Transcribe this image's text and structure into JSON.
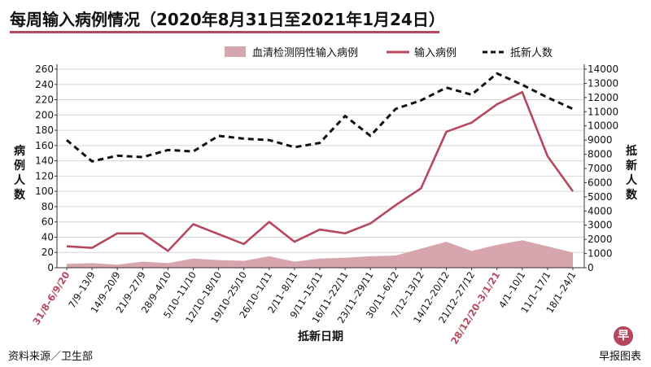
{
  "title": "每周输入病例情况（2020年8月31日至2021年1月24日）",
  "source": "资料来源／卫生部",
  "publisher": "早报图表",
  "logo_glyph": "早",
  "chart_data": {
    "type": "line",
    "xlabel": "抵新日期",
    "ylabel_left": "病例人数",
    "ylabel_right": "抵新人数",
    "ylim_left": [
      0,
      260
    ],
    "yticks_left": [
      0,
      20,
      40,
      60,
      80,
      100,
      120,
      140,
      160,
      180,
      200,
      220,
      240,
      260
    ],
    "ylim_right": [
      0,
      14000
    ],
    "yticks_right": [
      0,
      1000,
      2000,
      3000,
      4000,
      5000,
      6000,
      7000,
      8000,
      9000,
      10000,
      11000,
      12000,
      13000,
      14000
    ],
    "categories": [
      "31/8–6/9/20",
      "7/9–13/9",
      "14/9–20/9",
      "21/9–27/9",
      "28/9–4/10",
      "5/10–11/10",
      "12/10–18/10",
      "19/10–25/10",
      "26/10–1/11",
      "2/11–8/11",
      "9/11–15/11",
      "16/11–22/11",
      "23/11–29/11",
      "30/11–6/12",
      "7/12–13/12",
      "14/12–20/12",
      "21/12–27/12",
      "28/12/20–3/1/21",
      "4/1–10/1",
      "11/1–17/1",
      "18/1–24/1"
    ],
    "highlighted_categories": [
      "31/8–6/9/20",
      "28/12/20–3/1/21"
    ],
    "series": [
      {
        "name": "血清检测阴性输入病例",
        "type": "area",
        "axis": "left",
        "color": "#d7a5ae",
        "values": [
          5,
          6,
          4,
          8,
          6,
          12,
          10,
          9,
          15,
          8,
          12,
          13,
          15,
          16,
          25,
          34,
          22,
          30,
          36,
          28,
          20
        ]
      },
      {
        "name": "输入病例",
        "type": "line",
        "axis": "left",
        "color": "#b5475e",
        "values": [
          28,
          26,
          45,
          45,
          22,
          57,
          44,
          31,
          60,
          34,
          50,
          45,
          58,
          82,
          104,
          178,
          190,
          214,
          230,
          146,
          100
        ]
      },
      {
        "name": "抵新人数",
        "type": "line",
        "axis": "right",
        "color": "#111111",
        "dashed": true,
        "values": [
          9000,
          7500,
          7900,
          7800,
          8300,
          8200,
          9300,
          9100,
          9000,
          8500,
          8800,
          10700,
          9300,
          11200,
          11800,
          12700,
          12200,
          13700,
          12900,
          12000,
          11200
        ]
      }
    ],
    "legend_position": "top-right"
  }
}
